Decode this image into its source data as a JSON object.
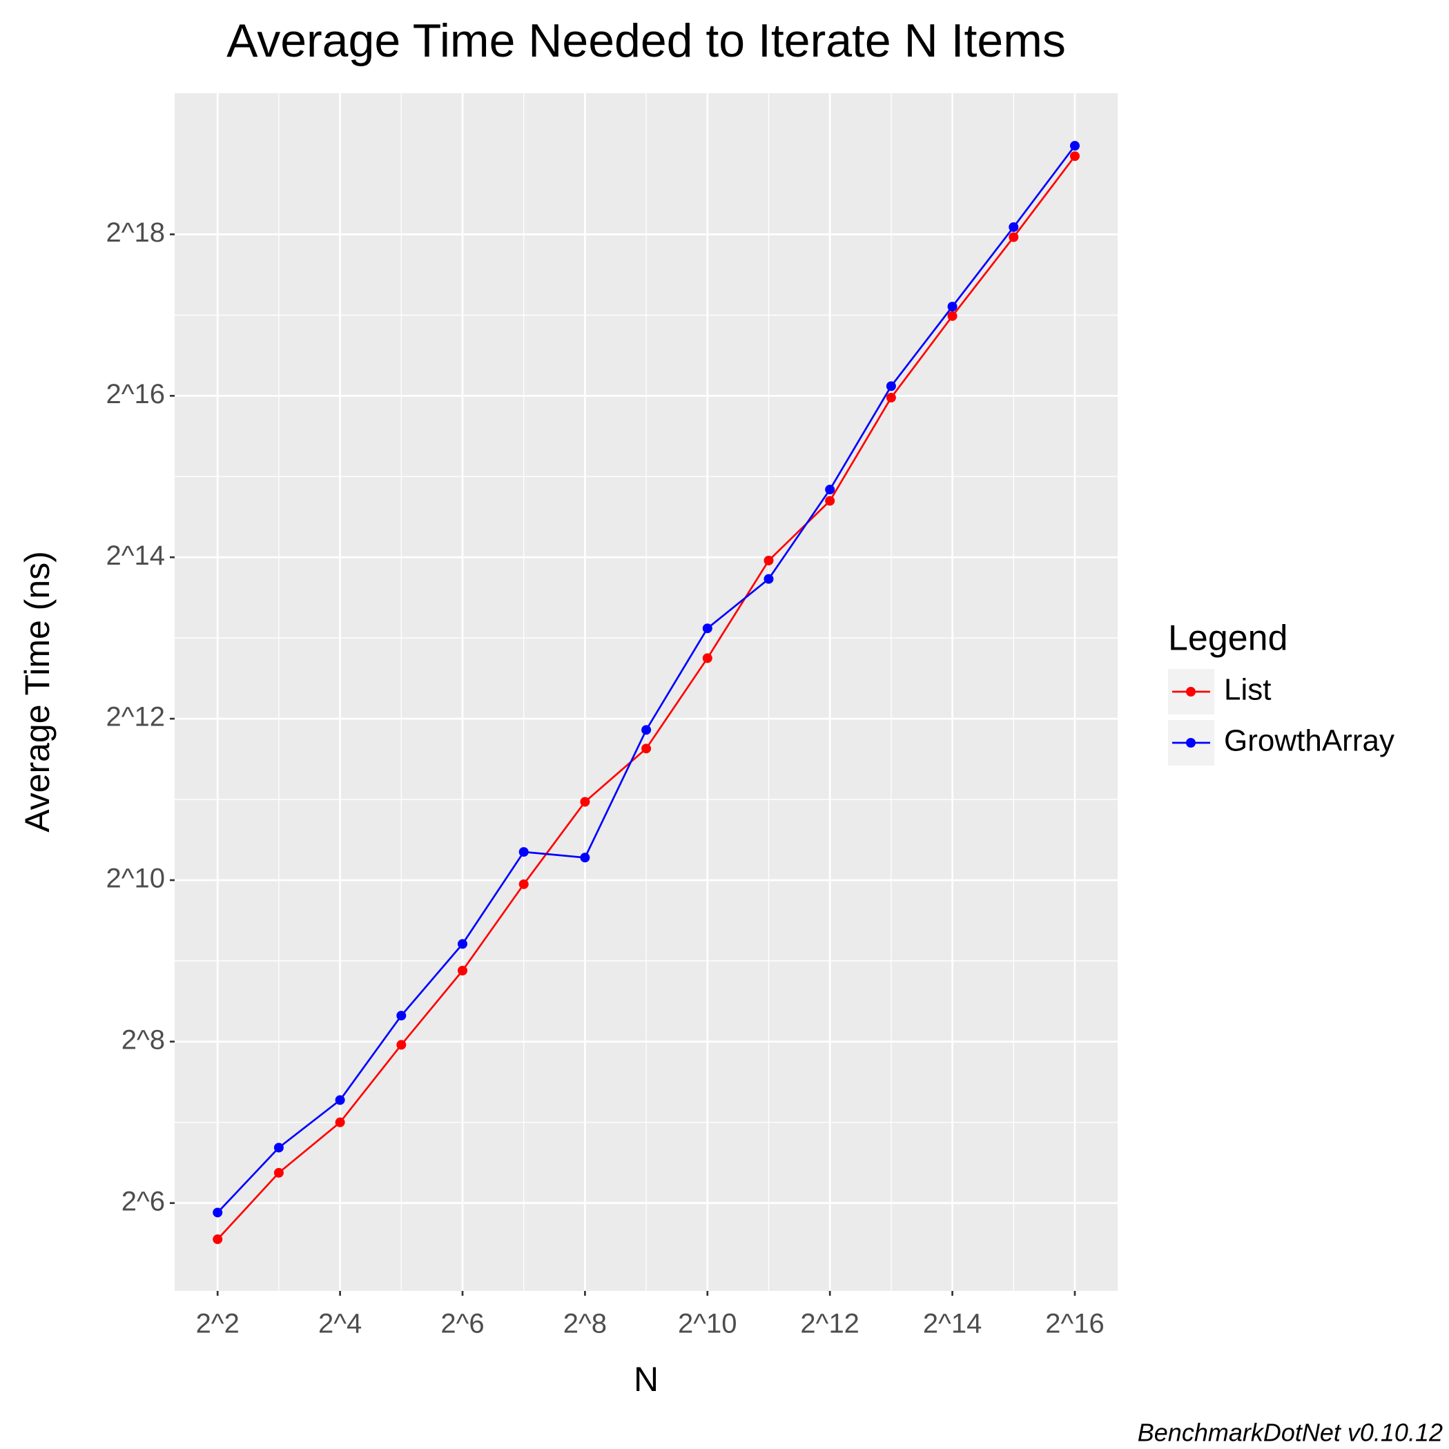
{
  "chart_data": {
    "type": "line",
    "title": "Average Time Needed to Iterate N Items",
    "x_label": "N",
    "y_label": "Average Time (ns)",
    "caption": "BenchmarkDotNet v0.10.12",
    "legend_title": "Legend",
    "legend_position": "right",
    "log_x": true,
    "log_y": true,
    "log_base": 2,
    "grid": true,
    "x": [
      4,
      8,
      16,
      32,
      64,
      128,
      256,
      512,
      1024,
      2048,
      4096,
      8192,
      16384,
      32768,
      65536
    ],
    "series": [
      {
        "name": "List",
        "color": "#ff0000",
        "values": [
          46.9,
          83,
          128,
          249,
          471,
          989,
          2006,
          3170,
          6890,
          15930,
          26600,
          64500,
          130000,
          256000,
          513000
        ]
      },
      {
        "name": "GrowthArray",
        "color": "#0000ff",
        "values": [
          59,
          103,
          155,
          320,
          592,
          1305,
          1243,
          3720,
          8900,
          13600,
          29300,
          71200,
          141000,
          279000,
          561000
        ]
      }
    ],
    "xlim": [
      2.46,
      106400
    ],
    "ylim": [
      30.1,
      881000
    ],
    "xticks": [
      {
        "value": 4,
        "label": "2^2"
      },
      {
        "value": 16,
        "label": "2^4"
      },
      {
        "value": 64,
        "label": "2^6"
      },
      {
        "value": 256,
        "label": "2^8"
      },
      {
        "value": 1024,
        "label": "2^10"
      },
      {
        "value": 4096,
        "label": "2^12"
      },
      {
        "value": 16384,
        "label": "2^14"
      },
      {
        "value": 65536,
        "label": "2^16"
      }
    ],
    "yticks": [
      {
        "value": 64,
        "label": "2^6"
      },
      {
        "value": 256,
        "label": "2^8"
      },
      {
        "value": 1024,
        "label": "2^10"
      },
      {
        "value": 4096,
        "label": "2^12"
      },
      {
        "value": 16384,
        "label": "2^14"
      },
      {
        "value": 65536,
        "label": "2^16"
      },
      {
        "value": 262144,
        "label": "2^18"
      }
    ]
  }
}
